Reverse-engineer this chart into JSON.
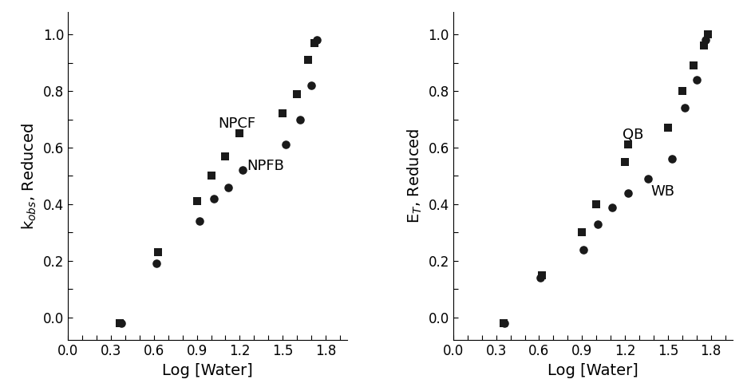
{
  "left_panel": {
    "ylabel": "k$_{obs}$, Reduced",
    "xlabel": "Log [Water]",
    "xlim": [
      0.0,
      1.95
    ],
    "ylim": [
      -0.08,
      1.08
    ],
    "xticks": [
      0.0,
      0.3,
      0.6,
      0.9,
      1.2,
      1.5,
      1.8
    ],
    "yticks": [
      0.0,
      0.2,
      0.4,
      0.6,
      0.8,
      1.0
    ],
    "label_NPCF": [
      1.05,
      0.67
    ],
    "label_NPFB": [
      1.25,
      0.52
    ],
    "squares": [
      [
        0.36,
        -0.02
      ],
      [
        0.63,
        0.23
      ],
      [
        0.9,
        0.41
      ],
      [
        1.0,
        0.5
      ],
      [
        1.1,
        0.57
      ],
      [
        1.2,
        0.65
      ],
      [
        1.5,
        0.72
      ],
      [
        1.6,
        0.79
      ],
      [
        1.68,
        0.91
      ],
      [
        1.72,
        0.97
      ]
    ],
    "circles": [
      [
        0.37,
        -0.02
      ],
      [
        0.62,
        0.19
      ],
      [
        0.92,
        0.34
      ],
      [
        1.02,
        0.42
      ],
      [
        1.12,
        0.46
      ],
      [
        1.22,
        0.52
      ],
      [
        1.52,
        0.61
      ],
      [
        1.62,
        0.7
      ],
      [
        1.7,
        0.82
      ],
      [
        1.74,
        0.98
      ]
    ]
  },
  "right_panel": {
    "ylabel": "E$_T$, Reduced",
    "xlabel": "Log [Water]",
    "xlim": [
      0.0,
      1.95
    ],
    "ylim": [
      -0.08,
      1.08
    ],
    "xticks": [
      0.0,
      0.3,
      0.6,
      0.9,
      1.2,
      1.5,
      1.8
    ],
    "yticks": [
      0.0,
      0.2,
      0.4,
      0.6,
      0.8,
      1.0
    ],
    "label_QB": [
      1.18,
      0.63
    ],
    "label_WB": [
      1.38,
      0.43
    ],
    "squares": [
      [
        0.35,
        -0.02
      ],
      [
        0.62,
        0.15
      ],
      [
        0.9,
        0.3
      ],
      [
        1.0,
        0.4
      ],
      [
        1.2,
        0.55
      ],
      [
        1.22,
        0.61
      ],
      [
        1.5,
        0.67
      ],
      [
        1.6,
        0.8
      ],
      [
        1.68,
        0.89
      ],
      [
        1.75,
        0.96
      ],
      [
        1.78,
        1.0
      ]
    ],
    "circles": [
      [
        0.36,
        -0.02
      ],
      [
        0.61,
        0.14
      ],
      [
        0.91,
        0.24
      ],
      [
        1.01,
        0.33
      ],
      [
        1.11,
        0.39
      ],
      [
        1.22,
        0.44
      ],
      [
        1.36,
        0.49
      ],
      [
        1.53,
        0.56
      ],
      [
        1.62,
        0.74
      ],
      [
        1.7,
        0.84
      ],
      [
        1.76,
        0.98
      ]
    ]
  },
  "marker_color": "#1a1a1a",
  "marker_size": 52,
  "circle_size": 58,
  "annotation_fontsize": 13,
  "tick_fontsize": 12,
  "label_fontsize": 14
}
